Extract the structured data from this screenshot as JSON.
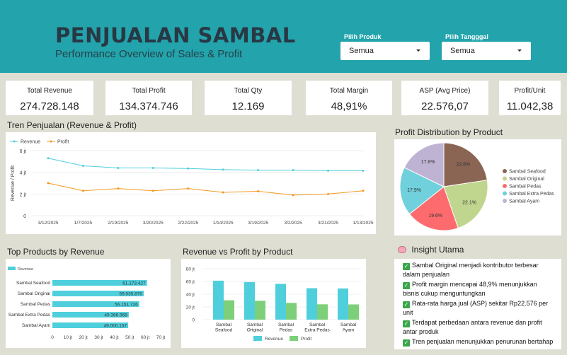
{
  "header": {
    "title": "PENJUALAN SAMBAL",
    "subtitle": "Performance Overview of Sales & Profit",
    "filters": [
      {
        "label": "Pilih Produk",
        "value": "Semua"
      },
      {
        "label": "Pilih Tangggal",
        "value": "Semua"
      }
    ]
  },
  "kpis": [
    {
      "label": "Total Revenue",
      "value": "274.728.148"
    },
    {
      "label": "Total Profit",
      "value": "134.374.746"
    },
    {
      "label": "Total Qty",
      "value": "12.169"
    },
    {
      "label": "Total Margin",
      "value": "48,91%"
    },
    {
      "label": "ASP (Avg Price)",
      "value": "22.576,07"
    },
    {
      "label": "Profit/Unit",
      "value": "11.042,38"
    }
  ],
  "sections": {
    "trend": "Tren Penjualan (Revenue & Profit)",
    "pie": "Profit Distribution by Product",
    "top": "Top Products by Revenue",
    "rvp": "Revenue vs Profit by Product",
    "insight": "Insight Utama"
  },
  "insights": [
    "Sambal Original menjadi kontributor terbesar dalam penjualan",
    "Profit margin mencapai 48,9% menunjukkan bisnis cukup menguntungkan",
    "Rata-rata harga jual (ASP) sekitar Rp22.576 per unit",
    "Terdapat perbedaan antara revenue dan profit antar produk",
    "Tren penjualan menunjukkan penurunan bertahap"
  ],
  "colors": {
    "header": "#23a3ab",
    "revenue": "#4fcfdc",
    "profit": "#f39a1e",
    "profit_bar": "#7dcf7a",
    "check": "#3aa64b"
  },
  "icons": {
    "insight": "brain-icon",
    "check": "check-icon",
    "dropdown": "caret-down-icon"
  },
  "chart_data": [
    {
      "type": "line",
      "title": "Tren Penjualan (Revenue & Profit)",
      "ylabel": "Revenue / Profit",
      "x": [
        "3/12/2025",
        "1/7/2025",
        "2/19/2025",
        "3/20/2025",
        "2/22/2025",
        "1/14/2025",
        "3/19/2025",
        "3/2/2025",
        "3/21/2025",
        "1/13/2025"
      ],
      "ylim": [
        0,
        6
      ],
      "yticks": [
        "0",
        "2 jt",
        "4 jt",
        "6 jt"
      ],
      "series": [
        {
          "name": "Revenue",
          "values": [
            5.3,
            4.6,
            4.4,
            4.4,
            4.35,
            4.25,
            4.2,
            4.2,
            4.15,
            4.15
          ]
        },
        {
          "name": "Profit",
          "values": [
            3.0,
            2.3,
            2.5,
            2.3,
            2.5,
            2.15,
            2.25,
            1.9,
            2.0,
            2.3
          ]
        }
      ],
      "legend": "top-left"
    },
    {
      "type": "pie",
      "title": "Profit Distribution by Product",
      "labels": [
        "Sambal Seafood",
        "Sambal Original",
        "Sambal Pedas",
        "Sambal Extra Pedas",
        "Sambal Ayam"
      ],
      "values": [
        22.6,
        22.1,
        19.6,
        17.9,
        17.8
      ],
      "value_labels": [
        "22.6%",
        "22.1%",
        "19.6%",
        "17.9%",
        "17.8%"
      ],
      "colors": [
        "#8b6553",
        "#c0d58d",
        "#fd6b6e",
        "#70d0dc",
        "#bfb3d4"
      ],
      "legend": "right"
    },
    {
      "type": "bar",
      "orientation": "horizontal",
      "title": "Top Products by Revenue",
      "categories": [
        "Sambal Seafood",
        "Sambal Original",
        "Sambal Pedas",
        "Sambal Extra Pedas",
        "Sambal Ayam"
      ],
      "values": [
        61173427,
        59035870,
        56151726,
        49366968,
        49000157
      ],
      "value_labels": [
        "61.173.427",
        "59.035.870",
        "56.151.726",
        "49.366.968",
        "49.000.157"
      ],
      "xlim": [
        0,
        70000000
      ],
      "xticks": [
        "0",
        "10 jt",
        "20 jt",
        "30 jt",
        "40 jt",
        "50 jt",
        "60 jt",
        "70 jt"
      ],
      "legend": "top-left",
      "series_name": "Revenue"
    },
    {
      "type": "bar",
      "title": "Revenue vs Profit by Product",
      "categories": [
        "Sambal Seafood",
        "Sambal Original",
        "Sambal Pedas",
        "Sambal Extra Pedas",
        "Sambal Ayam"
      ],
      "ylim": [
        0,
        80
      ],
      "yticks": [
        "0",
        "20 jt",
        "40 jt",
        "60 jt",
        "80 jt"
      ],
      "series": [
        {
          "name": "Revenue",
          "values": [
            61.2,
            59.0,
            56.2,
            49.4,
            49.0
          ]
        },
        {
          "name": "Profit",
          "values": [
            30.4,
            29.7,
            26.3,
            24.1,
            23.9
          ]
        }
      ],
      "legend": "bottom"
    }
  ]
}
